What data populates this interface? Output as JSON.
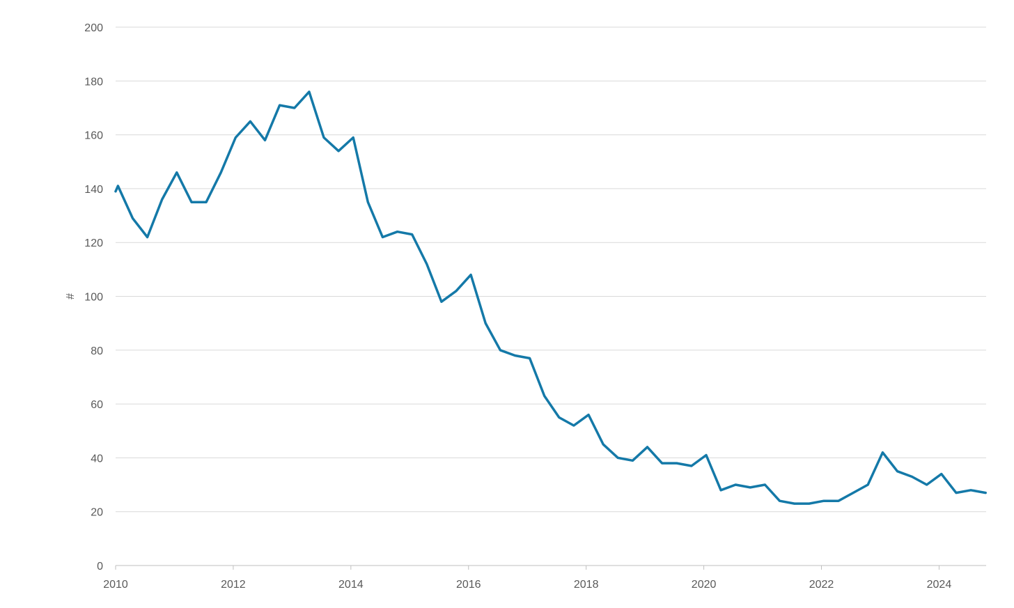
{
  "chart_data": {
    "type": "line",
    "ylabel": "#",
    "ylim": [
      0,
      200
    ],
    "y_ticks": [
      0,
      20,
      40,
      60,
      80,
      100,
      120,
      140,
      160,
      180,
      200
    ],
    "xlim": [
      2010,
      2024.8
    ],
    "x_ticks": [
      2010,
      2012,
      2014,
      2016,
      2018,
      2020,
      2022,
      2024
    ],
    "grid": "horizontal",
    "legend": "none",
    "series": [
      {
        "color": "#1479a8",
        "x": [
          2010,
          2010.04,
          2010.29,
          2010.54,
          2010.79,
          2011.04,
          2011.29,
          2011.54,
          2011.79,
          2012.04,
          2012.29,
          2012.54,
          2012.79,
          2013.04,
          2013.29,
          2013.54,
          2013.79,
          2014.04,
          2014.29,
          2014.54,
          2014.79,
          2015.04,
          2015.29,
          2015.54,
          2015.79,
          2016.04,
          2016.29,
          2016.54,
          2016.79,
          2017.04,
          2017.29,
          2017.54,
          2017.79,
          2018.04,
          2018.29,
          2018.54,
          2018.79,
          2019.04,
          2019.29,
          2019.54,
          2019.79,
          2020.04,
          2020.29,
          2020.54,
          2020.79,
          2021.04,
          2021.29,
          2021.54,
          2021.79,
          2022.04,
          2022.29,
          2022.54,
          2022.79,
          2023.04,
          2023.29,
          2023.54,
          2023.79,
          2024.04,
          2024.29,
          2024.54,
          2024.79
        ],
        "y": [
          139,
          141,
          129,
          122,
          136,
          146,
          135,
          135,
          146,
          159,
          165,
          158,
          171,
          170,
          176,
          159,
          154,
          159,
          135,
          122,
          124,
          123,
          112,
          98,
          102,
          108,
          90,
          80,
          78,
          77,
          63,
          55,
          52,
          56,
          45,
          40,
          39,
          44,
          38,
          38,
          37,
          41,
          28,
          30,
          29,
          30,
          24,
          23,
          23,
          24,
          24,
          27,
          30,
          42,
          35,
          33,
          30,
          34,
          27,
          28,
          27
        ]
      }
    ]
  }
}
